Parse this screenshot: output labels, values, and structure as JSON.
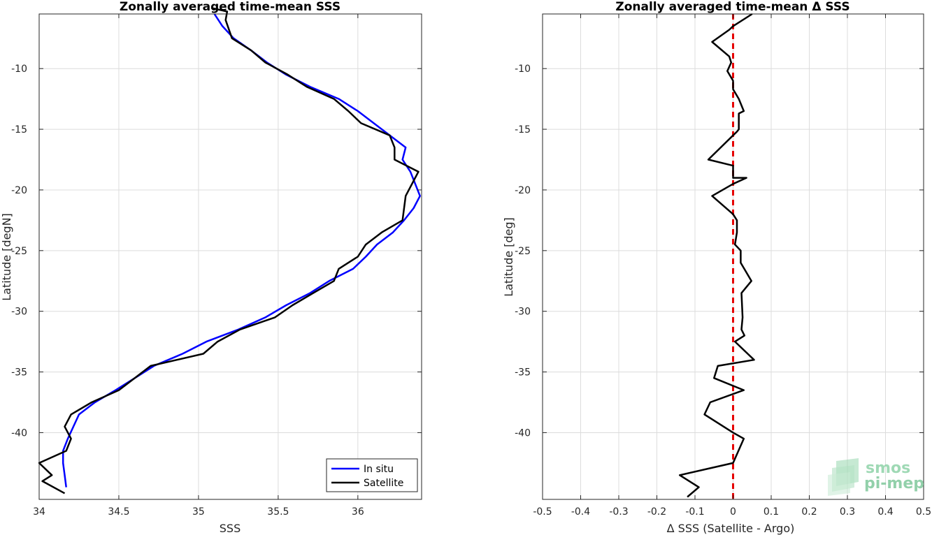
{
  "chart_data": [
    {
      "type": "line",
      "title": "Zonally averaged time-mean SSS",
      "xlabel": "SSS",
      "ylabel": "Latitude [degN]",
      "xlim": [
        34,
        36.4
      ],
      "ylim": [
        -45.5,
        -5.5
      ],
      "xticks": [
        34,
        34.5,
        35,
        35.5,
        36
      ],
      "xtick_labels": [
        "34",
        "34.5",
        "35",
        "35.5",
        "36"
      ],
      "yticks": [
        -40,
        -35,
        -30,
        -25,
        -20,
        -15,
        -10
      ],
      "ytick_labels": [
        "-40",
        "-35",
        "-30",
        "-25",
        "-20",
        "-15",
        "-10"
      ],
      "grid": true,
      "legend": "bottom-right",
      "series": [
        {
          "name": "In situ",
          "color": "#0000ff",
          "x": [
            35.1,
            35.15,
            35.22,
            35.33,
            35.43,
            35.55,
            35.7,
            35.88,
            36.0,
            36.1,
            36.2,
            36.3,
            36.28,
            36.33,
            36.36,
            36.39,
            36.35,
            36.29,
            36.22,
            36.12,
            36.05,
            35.97,
            35.82,
            35.7,
            35.55,
            35.42,
            35.25,
            35.05,
            34.9,
            34.72,
            34.6,
            34.48,
            34.35,
            34.25,
            34.18,
            34.15,
            34.15,
            34.16,
            34.17
          ],
          "y": [
            -5.5,
            -6.5,
            -7.5,
            -8.5,
            -9.5,
            -10.5,
            -11.5,
            -12.5,
            -13.5,
            -14.5,
            -15.5,
            -16.5,
            -17.5,
            -18.5,
            -19.5,
            -20.5,
            -21.5,
            -22.5,
            -23.5,
            -24.5,
            -25.5,
            -26.5,
            -27.5,
            -28.5,
            -29.5,
            -30.5,
            -31.5,
            -32.5,
            -33.5,
            -34.5,
            -35.5,
            -36.5,
            -37.5,
            -38.5,
            -40.5,
            -41.5,
            -42.5,
            -43.5,
            -44.5
          ]
        },
        {
          "name": "Satellite",
          "color": "#000000",
          "x": [
            35.08,
            35.18,
            35.17,
            35.21,
            35.33,
            35.42,
            35.56,
            35.68,
            35.85,
            35.94,
            36.02,
            36.2,
            36.23,
            36.23,
            36.38,
            36.3,
            36.28,
            36.15,
            36.05,
            36.0,
            35.88,
            35.85,
            35.72,
            35.59,
            35.48,
            35.26,
            35.12,
            35.03,
            34.7,
            34.6,
            34.5,
            34.33,
            34.2,
            34.16,
            34.2,
            34.17,
            33.98,
            34.08,
            34.02,
            34.16
          ],
          "y": [
            -5.0,
            -5.3,
            -6.0,
            -7.5,
            -8.5,
            -9.5,
            -10.5,
            -11.5,
            -12.5,
            -13.5,
            -14.5,
            -15.5,
            -16.5,
            -17.5,
            -18.5,
            -20.5,
            -22.5,
            -23.5,
            -24.5,
            -25.5,
            -26.5,
            -27.5,
            -28.5,
            -29.5,
            -30.5,
            -31.5,
            -32.5,
            -33.5,
            -34.5,
            -35.5,
            -36.5,
            -37.5,
            -38.5,
            -39.5,
            -40.5,
            -41.5,
            -42.5,
            -43.5,
            -44.0,
            -45.0
          ]
        }
      ]
    },
    {
      "type": "line",
      "title": "Zonally averaged time-mean Δ SSS",
      "xlabel": "Δ SSS (Satellite - Argo)",
      "ylabel": "Latitude [deg]",
      "xlim": [
        -0.5,
        0.5
      ],
      "ylim": [
        -45.5,
        -5.5
      ],
      "xticks": [
        -0.5,
        -0.4,
        -0.3,
        -0.2,
        -0.1,
        0,
        0.1,
        0.2,
        0.3,
        0.4,
        0.5
      ],
      "xtick_labels": [
        "-0.5",
        "-0.4",
        "-0.3",
        "-0.2",
        "-0.1",
        "0",
        "0.1",
        "0.2",
        "0.3",
        "0.4",
        "0.5"
      ],
      "yticks": [
        -40,
        -35,
        -30,
        -25,
        -20,
        -15,
        -10
      ],
      "ytick_labels": [
        "-40",
        "-35",
        "-30",
        "-25",
        "-20",
        "-15",
        "-10"
      ],
      "grid": true,
      "reference_line": {
        "x": 0,
        "color": "#e60000",
        "style": "dashed"
      },
      "series": [
        {
          "color": "#000000",
          "x": [
            0.05,
            0.0,
            -0.01,
            -0.055,
            -0.01,
            -0.005,
            -0.015,
            0.0,
            0.0,
            0.015,
            0.028,
            0.015,
            0.015,
            0.015,
            0.01,
            0.0,
            -0.065,
            0.0,
            0.0,
            0.035,
            0.0,
            -0.055,
            0.0,
            0.01,
            0.01,
            0.005,
            0.02,
            0.02,
            0.048,
            0.022,
            0.025,
            0.022,
            0.03,
            0.005,
            0.055,
            -0.04,
            -0.05,
            0.028,
            -0.06,
            -0.075,
            0.0,
            0.028,
            0.0,
            -0.14,
            -0.09,
            -0.12
          ],
          "y": [
            -5.5,
            -6.5,
            -6.8,
            -7.8,
            -9.0,
            -9.5,
            -10.2,
            -11.0,
            -11.7,
            -12.5,
            -13.5,
            -13.7,
            -14.5,
            -15.0,
            -15.2,
            -15.5,
            -17.5,
            -18.0,
            -19.0,
            -19.0,
            -19.5,
            -20.5,
            -22.0,
            -22.5,
            -23.5,
            -24.5,
            -25.0,
            -26.0,
            -27.5,
            -28.5,
            -30.5,
            -31.5,
            -32.0,
            -32.5,
            -34.0,
            -34.5,
            -35.5,
            -36.5,
            -37.5,
            -38.5,
            -40.0,
            -40.5,
            -42.5,
            -43.5,
            -44.5,
            -45.3
          ]
        }
      ]
    }
  ],
  "legend": {
    "in_situ_label": "In situ",
    "satellite_label": "Satellite"
  },
  "watermark": {
    "line1": "smos",
    "line2": "pi-mep",
    "color": "#7fc89c"
  }
}
